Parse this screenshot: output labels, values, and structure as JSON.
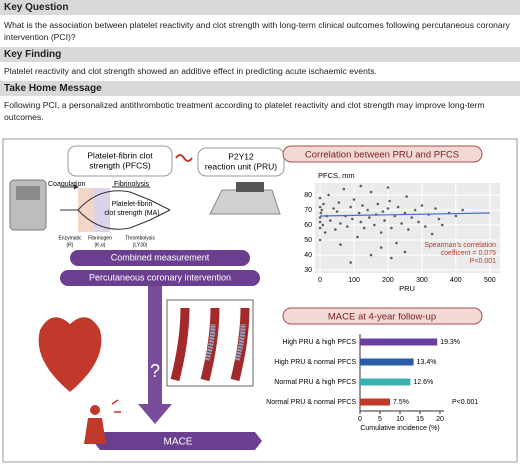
{
  "sections": [
    {
      "heading": "Key Question",
      "text": "What is the association between platelet reactivity and clot strength with long-term clinical outcomes following percutaneous coronary intervention (PCI)?"
    },
    {
      "heading": "Key Finding",
      "text": "Platelet reactivity and clot strength showed an additive effect in predicting acute ischaemic events."
    },
    {
      "heading": "Take Home Message",
      "text": "Following PCI, a personalized antithrombotic treatment according to platelet reactivity and clot strength may improve long-term outcomes."
    }
  ],
  "diagram": {
    "pfcs_box": [
      "Platelet-fibrin clot",
      "strength (PFCS)"
    ],
    "pru_box": [
      "P2Y12",
      "reaction unit (PRU)"
    ],
    "coagulation": "Coagulation",
    "fibrinolysis": "Fibrinolysis",
    "ma_label": [
      "Platelet-fibrin",
      "clot strength (MA)"
    ],
    "phases": [
      [
        "Enzymatic",
        "(R)"
      ],
      [
        "Fibrinogen",
        "(K,α)"
      ],
      [
        "Thrombolysis",
        "(LY30)"
      ]
    ],
    "combined": "Combined measurement",
    "pci": "Percutaneous coronary intervention",
    "question": "?",
    "outcome": "MACE"
  },
  "chart_data": [
    {
      "type": "scatter",
      "title": "Correlation between PRU and PFCS",
      "y_label": "PFCS, mm",
      "x_label": "PRU",
      "x": [
        0,
        0,
        0,
        0,
        0,
        0,
        2,
        5,
        8,
        10,
        15,
        20,
        25,
        30,
        40,
        45,
        50,
        55,
        60,
        70,
        75,
        80,
        90,
        95,
        100,
        110,
        115,
        120,
        125,
        130,
        140,
        145,
        150,
        160,
        165,
        170,
        180,
        185,
        190,
        200,
        205,
        210,
        220,
        225,
        230,
        240,
        250,
        255,
        260,
        270,
        280,
        290,
        300,
        310,
        320,
        330,
        340,
        350,
        360,
        380,
        400,
        420,
        150,
        180,
        210,
        120,
        90,
        250,
        60,
        200
      ],
      "values": [
        72,
        65,
        58,
        50,
        78,
        62,
        68,
        70,
        60,
        74,
        55,
        66,
        80,
        63,
        71,
        57,
        69,
        75,
        61,
        84,
        66,
        59,
        72,
        64,
        77,
        52,
        68,
        62,
        73,
        58,
        70,
        65,
        82,
        60,
        67,
        74,
        55,
        69,
        63,
        71,
        76,
        58,
        66,
        48,
        72,
        61,
        68,
        79,
        57,
        65,
        70,
        62,
        73,
        59,
        67,
        54,
        71,
        64,
        60,
        68,
        66,
        70,
        40,
        45,
        38,
        86,
        35,
        42,
        47,
        85
      ],
      "color": "#222222",
      "fit": {
        "x": [
          0,
          500
        ],
        "values": [
          66,
          68
        ],
        "color": "#4a6fd1"
      },
      "xlim": [
        -15,
        530
      ],
      "ylim": [
        28,
        88
      ],
      "xticks": [
        0,
        100,
        200,
        300,
        400,
        500
      ],
      "yticks": [
        30,
        40,
        50,
        60,
        70,
        80
      ],
      "grid": true,
      "annotation": [
        "Spearman's correlation",
        "coefficent = 0.075",
        "P<0.001"
      ],
      "annotation_color": "#c0392b"
    },
    {
      "type": "hbar",
      "title": "MACE at 4-year follow-up",
      "categories": [
        "High PRU & high PFCS",
        "High PRU & normal PFCS",
        "Normal PRU & high PFCS",
        "Normal PRU & normal PFCS"
      ],
      "values": [
        19.3,
        13.4,
        12.6,
        7.5
      ],
      "value_labels": [
        "19.3%",
        "13.4%",
        "12.6%",
        "7.5%"
      ],
      "colors": [
        "#6b3fa0",
        "#2a5caa",
        "#3ab0b0",
        "#c0392b"
      ],
      "xlim": [
        0,
        21
      ],
      "xticks": [
        0,
        5,
        10,
        15,
        20
      ],
      "x_label": "Cumulative incidence (%)",
      "annotation": "P<0.001"
    }
  ]
}
